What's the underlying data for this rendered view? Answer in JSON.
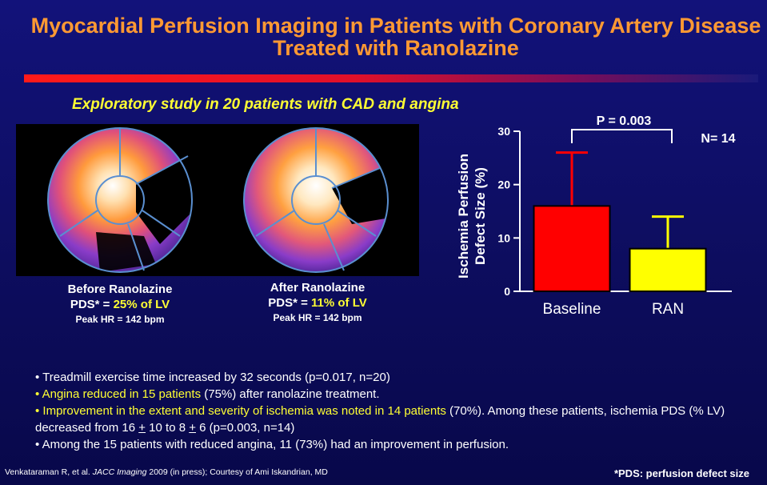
{
  "slide": {
    "title": "Myocardial Perfusion Imaging in Patients with Coronary Artery Disease Treated with Ranolazine",
    "subtitle": "Exploratory study in 20 patients with CAD and angina",
    "before": {
      "label": "Before Ranolazine",
      "pds_prefix": "PDS* = ",
      "pds_value": "25% of LV",
      "hr": "Peak HR = 142 bpm"
    },
    "after": {
      "label": "After Ranolazine",
      "pds_prefix": "PDS* = ",
      "pds_value": "11% of LV",
      "hr": "Peak HR = 142 bpm"
    },
    "bullets": {
      "b1": "• Treadmill exercise time increased by 32 seconds (p=0.017, n=20)",
      "b2_y": "• Angina reduced in 15 patients",
      "b2_w": " (75%) after ranolazine treatment.",
      "b3_y": "• Improvement in the extent and severity of ischemia was noted in 14 patients",
      "b3_w": " (70%).  Among these patients, ischemia PDS (% LV) decreased from 16 ",
      "b3_pm1": "+",
      "b3_mid": " 10 to 8 ",
      "b3_pm2": "+",
      "b3_end": " 6 (p=0.003, n=14)",
      "b4": "• Among the 15 patients with reduced angina, 11 (73%) had an improvement in perfusion."
    },
    "footer": {
      "citation_pre": "Venkataraman R, et al. ",
      "citation_journal": "JACC Imaging",
      "citation_post": " 2009 (in press); Courtesy of Ami Iskandrian, MD",
      "pds_note": "*PDS: perfusion defect size"
    },
    "colors": {
      "title": "#ff9933",
      "highlight": "#ffff33",
      "baseline_bar": "#ff0000",
      "ran_bar": "#ffff00"
    }
  },
  "chart_data": {
    "type": "bar",
    "categories": [
      "Baseline",
      "RAN"
    ],
    "values": [
      16,
      8
    ],
    "error_upper": [
      10,
      6
    ],
    "ylabel_line1": "Ischemia Perfusion",
    "ylabel_line2": "Defect Size (%)",
    "ylim": [
      0,
      30
    ],
    "yticks": [
      0,
      10,
      20,
      30
    ],
    "annotation": "P = 0.003",
    "n_label": "N= 14",
    "grid": false
  }
}
